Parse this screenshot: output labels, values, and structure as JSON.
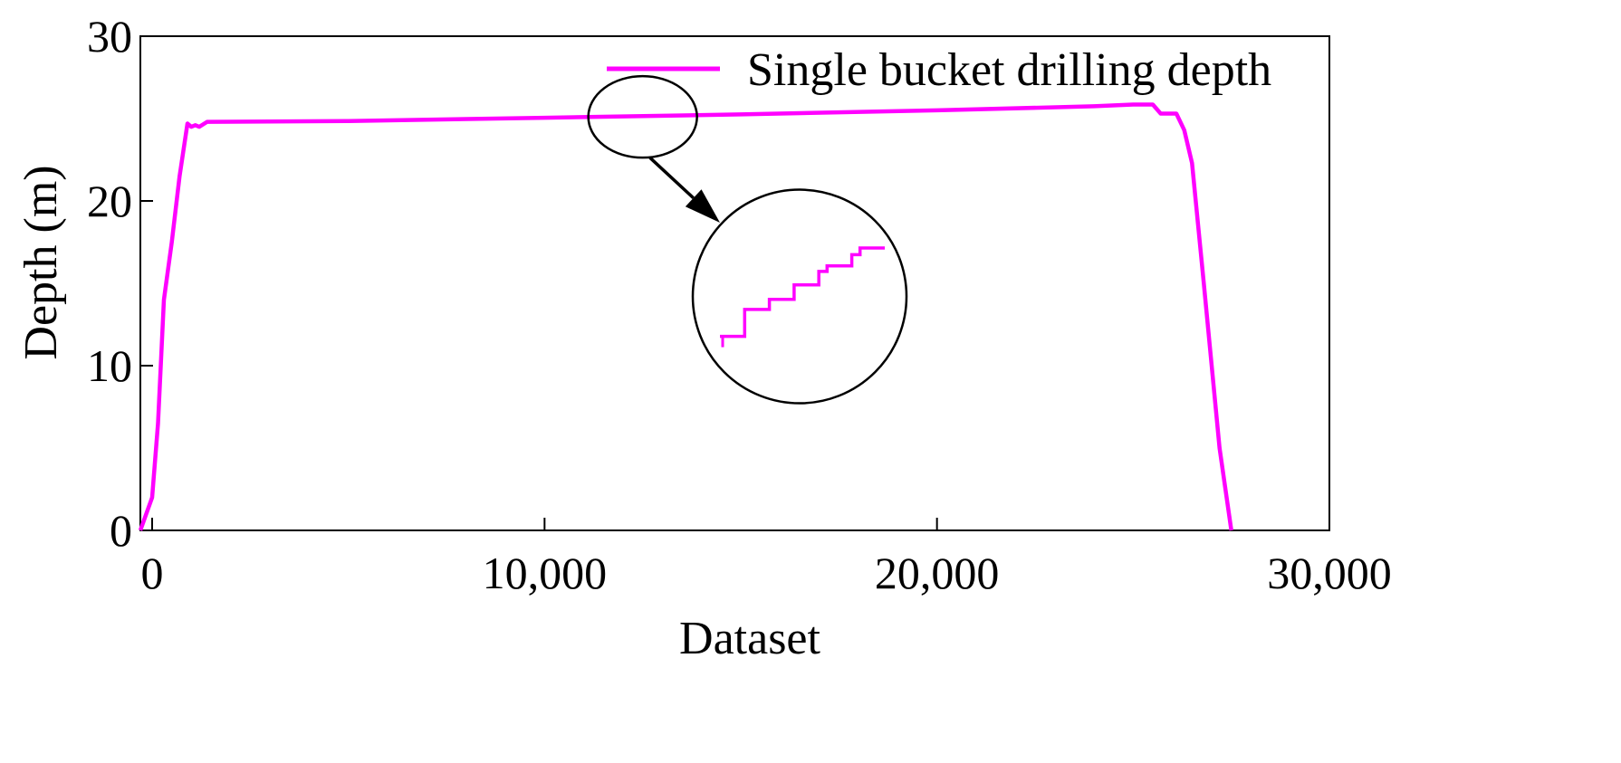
{
  "chart_data": {
    "type": "line",
    "title": "",
    "xlabel": "Dataset",
    "ylabel": "Depth (m)",
    "xlim": [
      -300,
      30000
    ],
    "ylim": [
      0,
      30
    ],
    "xticks": [
      0,
      10000,
      20000,
      30000
    ],
    "xtick_labels": [
      "0",
      "10,000",
      "20,000",
      "30,000"
    ],
    "yticks": [
      0,
      10,
      20,
      30
    ],
    "ytick_labels": [
      "0",
      "10",
      "20",
      "30"
    ],
    "grid": false,
    "legend_position": "top-right",
    "series": [
      {
        "name": "Single bucket drilling depth",
        "color": "#ff00ff",
        "x": [
          -300,
          -150,
          0,
          150,
          300,
          500,
          700,
          900,
          1000,
          1100,
          1200,
          1400,
          5000,
          10000,
          15000,
          20000,
          24000,
          25000,
          25500,
          25700,
          26100,
          26300,
          26500,
          26800,
          27200,
          27500
        ],
        "y": [
          0,
          1,
          2,
          6.5,
          14,
          17.5,
          21.5,
          24.7,
          24.5,
          24.6,
          24.5,
          24.8,
          24.85,
          25.05,
          25.25,
          25.5,
          25.75,
          25.85,
          25.85,
          25.3,
          25.3,
          24.3,
          22.3,
          15,
          5,
          0
        ]
      }
    ],
    "annotations": {
      "zoom_source_center": [
        12500,
        25.1
      ],
      "zoom_target_center": [
        16500,
        14.2
      ],
      "inset_steps": [
        [
          0,
          0
        ],
        [
          0.15,
          0
        ],
        [
          0.15,
          1.2
        ],
        [
          0.3,
          1.2
        ],
        [
          0.3,
          1.65
        ],
        [
          0.45,
          1.65
        ],
        [
          0.45,
          2.3
        ],
        [
          0.6,
          2.3
        ],
        [
          0.6,
          2.9
        ],
        [
          0.65,
          2.9
        ],
        [
          0.65,
          3.15
        ],
        [
          0.8,
          3.15
        ],
        [
          0.8,
          3.65
        ],
        [
          0.85,
          3.65
        ],
        [
          0.85,
          3.95
        ],
        [
          1.0,
          3.95
        ]
      ]
    }
  }
}
